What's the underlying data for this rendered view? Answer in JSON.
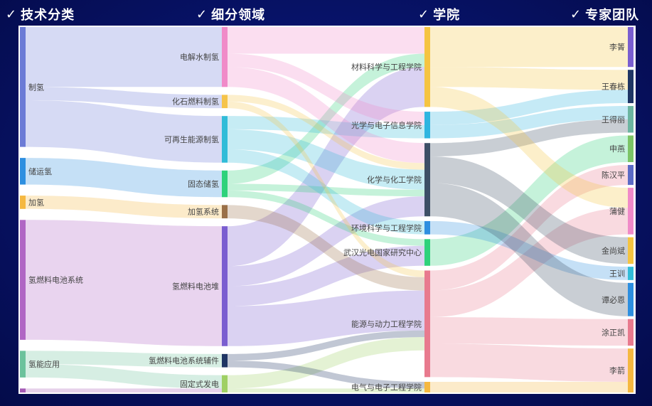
{
  "headers": {
    "col1": {
      "check": "✓",
      "label": "技术分类"
    },
    "col2": {
      "check": "✓",
      "label": "细分领域"
    },
    "col3": {
      "check": "✓",
      "label": "学院"
    },
    "col4": {
      "check": "✓",
      "label": "专家团队"
    }
  },
  "chart_data": {
    "type": "sankey",
    "columns": [
      [
        "制氢",
        "储运氢",
        "加氢",
        "氢燃料电池系统",
        "氢能应用",
        "n1_extra"
      ],
      [
        "电解水制氢",
        "化石燃料制氢",
        "可再生能源制氢",
        "固态储氢",
        "加氢系统",
        "氢燃料电池堆",
        "氢燃料电池系统辅件",
        "固定式发电"
      ],
      [
        "材料科学与工程学院",
        "光学与电子信息学院",
        "化学与化工学院",
        "环境科学与工程学院",
        "武汉光电国家研究中心",
        "能源与动力工程学院",
        "电气与电子工程学院"
      ],
      [
        "李箐",
        "王春栋",
        "王得丽",
        "申燕",
        "陈汉平",
        "蒲健",
        "金尚斌",
        "王训",
        "谭必恩",
        "涂正凯",
        "李箭"
      ]
    ],
    "nodes": [
      {
        "name": "制氢",
        "label": "制氢",
        "color": "#6b7bd6"
      },
      {
        "name": "储运氢",
        "label": "储运氢",
        "color": "#2d8fe0"
      },
      {
        "name": "加氢",
        "label": "加氢",
        "color": "#f5b841"
      },
      {
        "name": "氢燃料电池系统",
        "label": "氢燃料电池系统",
        "color": "#b066c4"
      },
      {
        "name": "氢能应用",
        "label": "氢能应用",
        "color": "#6cc29c"
      },
      {
        "name": "n1_extra",
        "label": "",
        "color": "#a55bb5"
      },
      {
        "name": "电解水制氢",
        "label": "电解水制氢",
        "color": "#f08ac8"
      },
      {
        "name": "化石燃料制氢",
        "label": "化石燃料制氢",
        "color": "#f5c44a"
      },
      {
        "name": "可再生能源制氢",
        "label": "可再生能源制氢",
        "color": "#31bcd8"
      },
      {
        "name": "固态储氢",
        "label": "固态储氢",
        "color": "#2ed27b"
      },
      {
        "name": "加氢系统",
        "label": "加氢系统",
        "color": "#9a7048"
      },
      {
        "name": "氢燃料电池堆",
        "label": "氢燃料电池堆",
        "color": "#7a5ed0"
      },
      {
        "name": "氢燃料电池系统辅件",
        "label": "氢燃料电池系统辅件",
        "color": "#1f3564"
      },
      {
        "name": "固定式发电",
        "label": "固定式发电",
        "color": "#9fd064"
      },
      {
        "name": "材料科学与工程学院",
        "label": "材料科学与工程学院",
        "color": "#f5c441"
      },
      {
        "name": "光学与电子信息学院",
        "label": "光学与电子信息学院",
        "color": "#2fb5e0"
      },
      {
        "name": "化学与化工学院",
        "label": "化学与化工学院",
        "color": "#3d4f66"
      },
      {
        "name": "环境科学与工程学院",
        "label": "环境科学与工程学院",
        "color": "#2d8fe0"
      },
      {
        "name": "武汉光电国家研究中心",
        "label": "武汉光电国家研究中心",
        "color": "#2ed27b"
      },
      {
        "name": "能源与动力工程学院",
        "label": "能源与动力工程学院",
        "color": "#e87a8e"
      },
      {
        "name": "电气与电子工程学院",
        "label": "电气与电子工程学院",
        "color": "#f5b841"
      },
      {
        "name": "李箐",
        "label": "李箐",
        "color": "#7a5ed0"
      },
      {
        "name": "王春栋",
        "label": "王春栋",
        "color": "#1f3564"
      },
      {
        "name": "王得丽",
        "label": "王得丽",
        "color": "#6cb5a0"
      },
      {
        "name": "申燕",
        "label": "申燕",
        "color": "#7cc466"
      },
      {
        "name": "陈汉平",
        "label": "陈汉平",
        "color": "#5b6bc6"
      },
      {
        "name": "蒲健",
        "label": "蒲健",
        "color": "#f08ac8"
      },
      {
        "name": "金尚斌",
        "label": "金尚斌",
        "color": "#f5c441"
      },
      {
        "name": "王训",
        "label": "王训",
        "color": "#31bcd8"
      },
      {
        "name": "谭必恩",
        "label": "谭必恩",
        "color": "#2d8fe0"
      },
      {
        "name": "涂正凯",
        "label": "涂正凯",
        "color": "#e87a8e"
      },
      {
        "name": "李箭",
        "label": "李箭",
        "color": "#f5b841"
      }
    ],
    "links": [
      {
        "source": "制氢",
        "target": "电解水制氢",
        "value": 9
      },
      {
        "source": "制氢",
        "target": "化石燃料制氢",
        "value": 2
      },
      {
        "source": "制氢",
        "target": "可再生能源制氢",
        "value": 7
      },
      {
        "source": "储运氢",
        "target": "固态储氢",
        "value": 4
      },
      {
        "source": "加氢",
        "target": "加氢系统",
        "value": 2
      },
      {
        "source": "氢燃料电池系统",
        "target": "氢燃料电池堆",
        "value": 18
      },
      {
        "source": "氢能应用",
        "target": "氢燃料电池系统辅件",
        "value": 2
      },
      {
        "source": "氢能应用",
        "target": "固定式发电",
        "value": 2
      },
      {
        "source": "n1_extra",
        "target": "固定式发电",
        "value": 0.6
      },
      {
        "source": "电解水制氢",
        "target": "材料科学与工程学院",
        "value": 4
      },
      {
        "source": "电解水制氢",
        "target": "光学与电子信息学院",
        "value": 2
      },
      {
        "source": "电解水制氢",
        "target": "化学与化工学院",
        "value": 3
      },
      {
        "source": "化石燃料制氢",
        "target": "化学与化工学院",
        "value": 1
      },
      {
        "source": "化石燃料制氢",
        "target": "能源与动力工程学院",
        "value": 1
      },
      {
        "source": "可再生能源制氢",
        "target": "光学与电子信息学院",
        "value": 2
      },
      {
        "source": "可再生能源制氢",
        "target": "化学与化工学院",
        "value": 3
      },
      {
        "source": "可再生能源制氢",
        "target": "环境科学与工程学院",
        "value": 2
      },
      {
        "source": "固态储氢",
        "target": "材料科学与工程学院",
        "value": 2
      },
      {
        "source": "固态储氢",
        "target": "化学与化工学院",
        "value": 1
      },
      {
        "source": "固态储氢",
        "target": "武汉光电国家研究中心",
        "value": 1
      },
      {
        "source": "加氢系统",
        "target": "能源与动力工程学院",
        "value": 2
      },
      {
        "source": "氢燃料电池堆",
        "target": "材料科学与工程学院",
        "value": 6
      },
      {
        "source": "氢燃料电池堆",
        "target": "化学与化工学院",
        "value": 3
      },
      {
        "source": "氢燃料电池堆",
        "target": "武汉光电国家研究中心",
        "value": 3
      },
      {
        "source": "氢燃料电池堆",
        "target": "能源与动力工程学院",
        "value": 6
      },
      {
        "source": "氢燃料电池系统辅件",
        "target": "能源与动力工程学院",
        "value": 1
      },
      {
        "source": "氢燃料电池系统辅件",
        "target": "电气与电子工程学院",
        "value": 1
      },
      {
        "source": "固定式发电",
        "target": "能源与动力工程学院",
        "value": 2
      },
      {
        "source": "固定式发电",
        "target": "电气与电子工程学院",
        "value": 0.6
      },
      {
        "source": "材料科学与工程学院",
        "target": "李箐",
        "value": 6
      },
      {
        "source": "材料科学与工程学院",
        "target": "王春栋",
        "value": 3
      },
      {
        "source": "材料科学与工程学院",
        "target": "蒲健",
        "value": 3
      },
      {
        "source": "光学与电子信息学院",
        "target": "王春栋",
        "value": 2
      },
      {
        "source": "光学与电子信息学院",
        "target": "王得丽",
        "value": 2
      },
      {
        "source": "化学与化工学院",
        "target": "王得丽",
        "value": 2
      },
      {
        "source": "化学与化工学院",
        "target": "金尚斌",
        "value": 4
      },
      {
        "source": "化学与化工学院",
        "target": "谭必恩",
        "value": 5
      },
      {
        "source": "环境科学与工程学院",
        "target": "王训",
        "value": 2
      },
      {
        "source": "武汉光电国家研究中心",
        "target": "申燕",
        "value": 4
      },
      {
        "source": "能源与动力工程学院",
        "target": "陈汉平",
        "value": 3
      },
      {
        "source": "能源与动力工程学院",
        "target": "蒲健",
        "value": 4
      },
      {
        "source": "能源与动力工程学院",
        "target": "涂正凯",
        "value": 4
      },
      {
        "source": "能源与动力工程学院",
        "target": "李箭",
        "value": 5
      },
      {
        "source": "电气与电子工程学院",
        "target": "李箭",
        "value": 1.6
      }
    ]
  }
}
